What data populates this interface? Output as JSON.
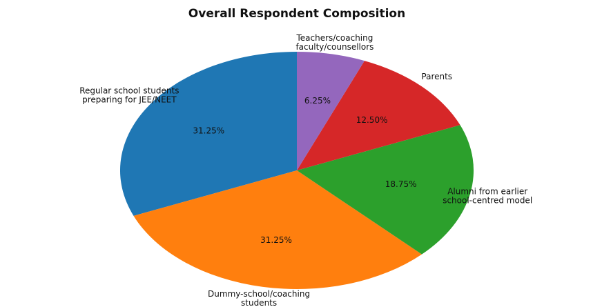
{
  "chart_data": {
    "type": "pie",
    "title": "Overall Respondent Composition",
    "start_angle_deg": 90,
    "direction": "counterclockwise",
    "slices": [
      {
        "label": "Regular school students\npreparing for JEE/NEET",
        "value": 31.25,
        "pct_label": "31.25%",
        "color": "#1f77b4"
      },
      {
        "label": "Dummy-school/coaching\nstudents",
        "value": 31.25,
        "pct_label": "31.25%",
        "color": "#ff7f0e"
      },
      {
        "label": "Alumni from earlier\nschool-centred model",
        "value": 18.75,
        "pct_label": "18.75%",
        "color": "#2ca02c"
      },
      {
        "label": "Parents",
        "value": 12.5,
        "pct_label": "12.50%",
        "color": "#d62728"
      },
      {
        "label": "Teachers/coaching\nfaculty/counsellors",
        "value": 6.25,
        "pct_label": "6.25%",
        "color": "#9467bd"
      }
    ]
  }
}
